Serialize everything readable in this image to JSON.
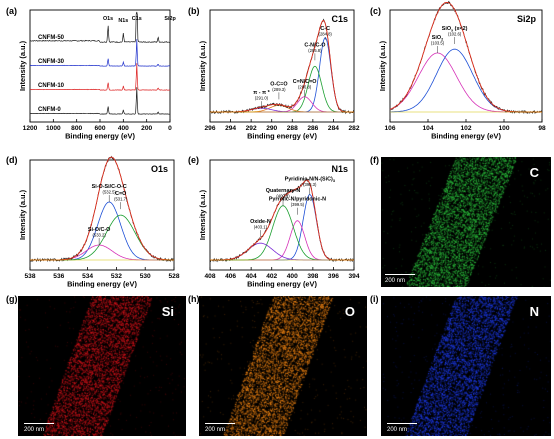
{
  "panels": {
    "a": "(a)",
    "b": "(b)",
    "c": "(c)",
    "d": "(d)",
    "e": "(e)",
    "f": "(f)",
    "g": "(g)",
    "h": "(h)",
    "i": "(i)"
  },
  "chart_data": [
    {
      "id": "a",
      "type": "line",
      "xlabel": "Binding energy (eV)",
      "ylabel": "Intensity (a.u.)",
      "xlim": [
        1200,
        0
      ],
      "xticks": [
        1200,
        1000,
        800,
        600,
        400,
        200,
        0
      ],
      "series": [
        {
          "name": "CNFM-50",
          "color": "#1a1a1a",
          "offset": 3
        },
        {
          "name": "CNFM-30",
          "color": "#2233cc",
          "offset": 2
        },
        {
          "name": "CNFM-10",
          "color": "#dd2222",
          "offset": 1
        },
        {
          "name": "CNFM-0",
          "color": "#1a1a1a",
          "offset": 0
        }
      ],
      "peaks": [
        {
          "label": "O1s",
          "x": 531,
          "height": 0.28
        },
        {
          "label": "N1s",
          "x": 400,
          "height": 0.15
        },
        {
          "label": "C1s",
          "x": 285,
          "height": 1.0
        },
        {
          "label": "Si2p",
          "x": 102,
          "height": 0.08
        }
      ]
    },
    {
      "id": "b",
      "type": "line",
      "title": "C1s",
      "xlabel": "Binding energy (eV)",
      "ylabel": "Intensity (a.u.)",
      "xlim": [
        296,
        282
      ],
      "xticks": [
        296,
        294,
        292,
        290,
        288,
        286,
        284,
        282
      ],
      "components": [
        {
          "label": "C-C",
          "value_label": "(284.8)",
          "x": 284.8,
          "height": 0.78,
          "width": 0.55,
          "color": "#1d4fd6"
        },
        {
          "label": "C-N/C-O",
          "value_label": "(285.8)",
          "x": 285.8,
          "height": 0.48,
          "width": 0.65,
          "color": "#1a9e2e"
        },
        {
          "label": "C=N/C=O",
          "value_label": "(286.8)",
          "x": 286.8,
          "height": 0.16,
          "width": 0.7,
          "color": "#d632b8"
        },
        {
          "label": "O-C=O",
          "value_label": "(289.3)",
          "x": 289.3,
          "height": 0.07,
          "width": 0.9,
          "color": "#e07b1a"
        },
        {
          "label": "π - π *",
          "value_label": "(291.0)",
          "x": 291.0,
          "height": 0.04,
          "width": 1.0,
          "color": "#7a2bd6"
        }
      ]
    },
    {
      "id": "c",
      "type": "line",
      "title": "Si2p",
      "xlabel": "Binding energy (eV)",
      "ylabel": "Intensity (a.u.)",
      "xlim": [
        106,
        98
      ],
      "xticks": [
        106,
        104,
        102,
        100,
        98
      ],
      "components": [
        {
          "label": "SiO",
          "label_sub": "2",
          "value_label": "(103.5)",
          "x": 103.5,
          "height": 0.62,
          "width": 1.0,
          "color": "#d632b8"
        },
        {
          "label": "SiO",
          "label_sub": "x",
          "label_tail": " (x<2)",
          "value_label": "(102.6)",
          "x": 102.6,
          "height": 0.66,
          "width": 0.95,
          "color": "#1d4fd6"
        }
      ]
    },
    {
      "id": "d",
      "type": "line",
      "title": "O1s",
      "xlabel": "Binding energy (eV)",
      "ylabel": "Intensity (a.u.)",
      "xlim": [
        538,
        528
      ],
      "xticks": [
        538,
        536,
        534,
        532,
        530,
        528
      ],
      "components": [
        {
          "label": "Si-O-Si/C-O-C",
          "value_label": "(532.5)",
          "x": 532.5,
          "height": 0.62,
          "width": 0.8,
          "color": "#1d4fd6"
        },
        {
          "label": "C=O",
          "value_label": "(531.7)",
          "x": 531.7,
          "height": 0.48,
          "width": 1.0,
          "color": "#1a9e2e"
        },
        {
          "label": "Si-O/C-O",
          "value_label": "(533.2)",
          "x": 533.2,
          "height": 0.16,
          "width": 0.9,
          "color": "#d632b8"
        }
      ]
    },
    {
      "id": "e",
      "type": "line",
      "title": "N1s",
      "xlabel": "Binding energy (eV)",
      "ylabel": "Intensity (a.u.)",
      "xlim": [
        408,
        394
      ],
      "xticks": [
        408,
        406,
        404,
        402,
        400,
        398,
        396,
        394
      ],
      "components": [
        {
          "label": "Pyridinic-N/N-(SiC)",
          "label_sub": "3",
          "value_label": "(398.3)",
          "x": 398.3,
          "height": 0.7,
          "width": 0.65,
          "color": "#1d4fd6"
        },
        {
          "label": "Pyrrolic-N/pyridonic-N",
          "value_label": "(399.5)",
          "x": 399.5,
          "height": 0.42,
          "width": 0.7,
          "color": "#d632b8"
        },
        {
          "label": "Quaternary-N",
          "value_label": "(400.9)",
          "x": 400.9,
          "height": 0.58,
          "width": 1.0,
          "color": "#1a9e2e"
        },
        {
          "label": "Oxide-N",
          "value_label": "(403.1)",
          "x": 403.1,
          "height": 0.18,
          "width": 1.2,
          "color": "#7a2bd6"
        }
      ]
    }
  ],
  "maps": [
    {
      "id": "f",
      "element": "C",
      "color": "#2ecc40",
      "scale": "200 nm"
    },
    {
      "id": "g",
      "element": "Si",
      "color": "#e0141c",
      "scale": "200 nm"
    },
    {
      "id": "h",
      "element": "O",
      "color": "#ff8c14",
      "scale": "200 nm"
    },
    {
      "id": "i",
      "element": "N",
      "color": "#2040ff",
      "scale": "200 nm"
    }
  ]
}
